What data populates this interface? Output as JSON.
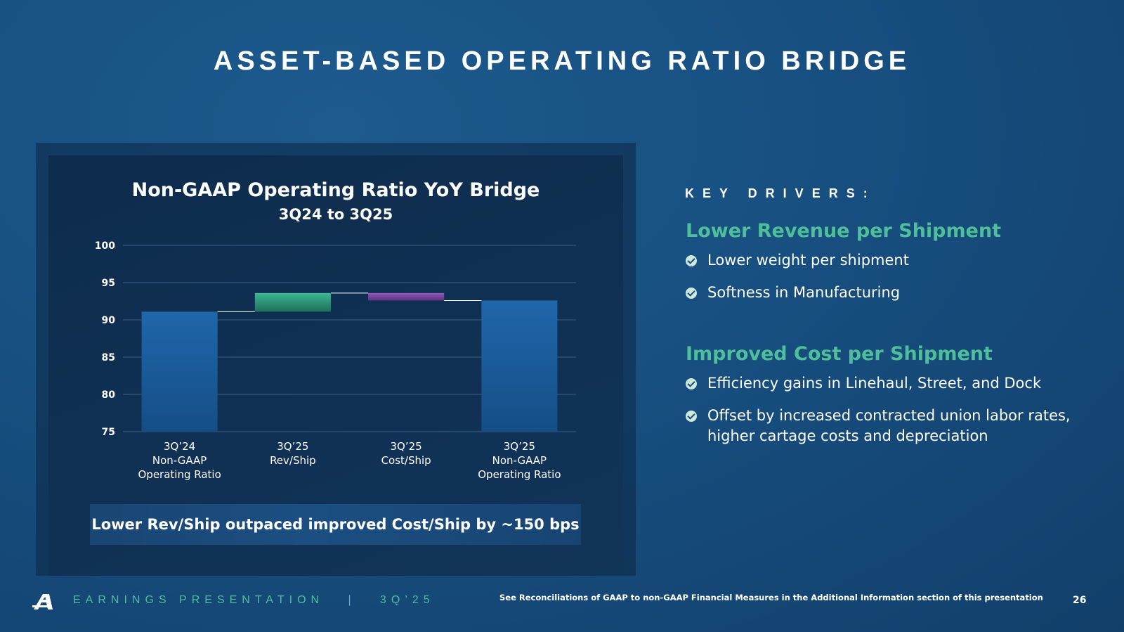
{
  "slide": {
    "title": "ASSET-BASED OPERATING RATIO BRIDGE",
    "callout": "Lower Rev/Ship outpaced improved Cost/Ship by ~150 bps"
  },
  "chart_data": {
    "type": "bar",
    "subtype": "waterfall",
    "title": "Non-GAAP Operating Ratio YoY Bridge",
    "subtitle": "3Q24 to 3Q25",
    "categories": [
      [
        "3Q’24",
        "Non-GAAP",
        "Operating Ratio"
      ],
      [
        "3Q’25",
        "Rev/Ship"
      ],
      [
        "3Q’25",
        "Cost/Ship"
      ],
      [
        "3Q’25",
        "Non-GAAP",
        "Operating Ratio"
      ]
    ],
    "bars": [
      {
        "kind": "total",
        "start": 75,
        "end": 91.1
      },
      {
        "kind": "increase",
        "start": 91.1,
        "end": 93.6
      },
      {
        "kind": "decrease",
        "start": 93.6,
        "end": 92.6
      },
      {
        "kind": "total",
        "start": 75,
        "end": 92.6
      }
    ],
    "ylim": [
      75,
      100
    ],
    "yticks": [
      "75",
      "80",
      "85",
      "90",
      "95",
      "100"
    ],
    "grid": true,
    "colors": {
      "total": "#1f64a6",
      "increase": "#39b08c",
      "decrease": "#8a4fb0",
      "grid": "#3a5e86",
      "connector": "#ffffff"
    }
  },
  "drivers": {
    "heading": "KEY DRIVERS:",
    "sections": [
      {
        "title": "Lower Revenue per Shipment",
        "items": [
          "Lower weight per shipment",
          "Softness in Manufacturing"
        ]
      },
      {
        "title": "Improved Cost per Shipment",
        "items": [
          "Efficiency gains in Linehaul, Street, and Dock",
          "Offset by increased contracted union labor rates, higher cartage costs and depreciation"
        ]
      }
    ]
  },
  "footer": {
    "brand": "EARNINGS PRESENTATION   |   3Q’25",
    "note": "See Reconciliations of GAAP to non-GAAP Financial Measures in the Additional Information section of this presentation",
    "page_number": "26",
    "logo_icon": "company-logo-icon"
  }
}
